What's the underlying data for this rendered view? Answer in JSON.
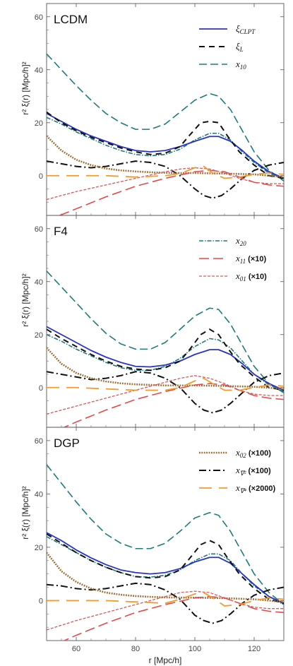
{
  "colors": {
    "xi_clpt": "#2a34c2",
    "xi_L": "#111111",
    "x10": "#1f7a7a",
    "x20": "#1f7a7a",
    "x11": "#e04c4c",
    "x01": "#d45a5a",
    "x02": "#9a6a30",
    "xn2": "#111111",
    "xn4": "#f29a2e"
  },
  "chart_data": [
    {
      "type": "line",
      "title": "LCDM",
      "xlim": [
        50,
        130
      ],
      "ylim": [
        -15,
        65
      ],
      "yticks": [
        0,
        20,
        40,
        60
      ],
      "xticks": [
        60,
        80,
        100,
        120
      ],
      "ylabel": "r² ξ(r) [Mpc/h]²",
      "xlabel": "",
      "legend": {
        "position": "top-right",
        "entries": [
          {
            "key": "xi_clpt",
            "label": "ξ",
            "sub": "CLPT"
          },
          {
            "key": "xi_L",
            "label": "ξ",
            "sub": "L"
          },
          {
            "key": "x10",
            "label": "x",
            "sub": "10"
          }
        ]
      },
      "series": [
        {
          "key": "x10",
          "x": [
            50,
            55,
            60,
            65,
            70,
            75,
            80,
            85,
            90,
            95,
            100,
            105,
            108,
            112,
            116,
            120,
            125,
            130
          ],
          "y": [
            46,
            40,
            34,
            28.5,
            23.5,
            20,
            17.5,
            17.5,
            19.5,
            24,
            28.5,
            31,
            30,
            25,
            17,
            9,
            2,
            -2
          ]
        },
        {
          "key": "x20",
          "x": [
            50,
            55,
            60,
            65,
            70,
            75,
            80,
            85,
            90,
            95,
            100,
            105,
            108,
            112,
            116,
            120,
            125,
            130
          ],
          "y": [
            22,
            19.5,
            16.5,
            14,
            11.5,
            9.5,
            8,
            7.5,
            8,
            10,
            13.5,
            16,
            16,
            13.5,
            9,
            5,
            1,
            -1.5
          ]
        },
        {
          "key": "xi_clpt",
          "x": [
            50,
            55,
            60,
            65,
            70,
            75,
            80,
            85,
            90,
            95,
            100,
            105,
            108,
            112,
            116,
            120,
            125,
            130
          ],
          "y": [
            23.5,
            20.5,
            17.5,
            15,
            13,
            11,
            9.5,
            9,
            9.5,
            11,
            13,
            14.8,
            14.8,
            13,
            9.5,
            5.5,
            1.5,
            -1
          ]
        },
        {
          "key": "xi_L",
          "x": [
            50,
            55,
            60,
            65,
            70,
            75,
            80,
            85,
            90,
            95,
            98,
            102,
            105,
            108,
            111,
            115,
            120,
            125,
            130
          ],
          "y": [
            24,
            20,
            17,
            14.5,
            12.5,
            10.5,
            9,
            8,
            8.5,
            11,
            15,
            20,
            20.5,
            20,
            15,
            9,
            4,
            0,
            -1
          ]
        },
        {
          "key": "xn2",
          "x": [
            50,
            55,
            60,
            65,
            70,
            75,
            80,
            85,
            90,
            95,
            100,
            103,
            106,
            109,
            112,
            116,
            120,
            125,
            130
          ],
          "y": [
            5.5,
            4.5,
            3.5,
            3,
            3.5,
            4.5,
            5.5,
            5,
            3.5,
            0,
            -5,
            -7.5,
            -8.5,
            -7.5,
            -5,
            -1,
            2,
            4,
            5
          ]
        },
        {
          "key": "x02",
          "x": [
            50,
            55,
            60,
            65,
            70,
            75,
            80,
            85,
            90,
            95,
            100,
            110,
            120,
            130
          ],
          "y": [
            15,
            9.5,
            6,
            4,
            2.7,
            2,
            1.6,
            1.3,
            1.1,
            1,
            1,
            0.8,
            0.5,
            -0.5
          ]
        },
        {
          "key": "x11",
          "x": [
            50,
            60,
            70,
            80,
            90,
            100,
            105,
            110,
            115,
            120,
            125,
            130
          ],
          "y": [
            -17,
            -12.5,
            -8,
            -4,
            -1,
            1.5,
            2,
            1.5,
            -0.5,
            -2.5,
            -3.5,
            -4
          ]
        },
        {
          "key": "x01",
          "x": [
            50,
            60,
            70,
            80,
            90,
            95,
            100,
            105,
            110,
            115,
            120,
            125,
            130
          ],
          "y": [
            -9,
            -6,
            -3.5,
            -1,
            1.5,
            2.5,
            3,
            2.5,
            1,
            -1,
            -2.5,
            -3,
            -3
          ]
        },
        {
          "key": "xn4",
          "x": [
            50,
            60,
            70,
            80,
            90,
            95,
            100,
            103,
            106,
            110,
            115,
            120,
            125,
            130
          ],
          "y": [
            0,
            0,
            0,
            -0.5,
            0,
            0.8,
            3,
            3.5,
            1,
            -1,
            -0.5,
            0.5,
            1,
            0.5
          ]
        }
      ]
    },
    {
      "type": "line",
      "title": "F4",
      "xlim": [
        50,
        130
      ],
      "ylim": [
        -15,
        65
      ],
      "yticks": [
        0,
        20,
        40,
        60
      ],
      "xticks": [
        60,
        80,
        100,
        120
      ],
      "ylabel": "r² ξ(r) [Mpc/h]²",
      "xlabel": "",
      "legend": {
        "position": "top-right",
        "entries": [
          {
            "key": "x20",
            "label": "x",
            "sub": "20",
            "suffix": ""
          },
          {
            "key": "x11",
            "label": "x",
            "sub": "11",
            "suffix": "(×10)"
          },
          {
            "key": "x01",
            "label": "x",
            "sub": "01",
            "suffix": "(×10)"
          }
        ]
      },
      "series": [
        {
          "key": "x10",
          "x": [
            50,
            55,
            60,
            65,
            70,
            75,
            80,
            85,
            90,
            95,
            100,
            105,
            108,
            112,
            116,
            120,
            125,
            130
          ],
          "y": [
            44,
            38,
            32,
            26,
            20.5,
            16.5,
            14.5,
            14.5,
            17,
            22,
            27,
            30,
            29.5,
            24,
            16,
            8,
            1.5,
            -2
          ]
        },
        {
          "key": "x20",
          "x": [
            50,
            55,
            60,
            65,
            70,
            75,
            80,
            85,
            90,
            95,
            100,
            105,
            108,
            112,
            116,
            120,
            125,
            130
          ],
          "y": [
            20,
            17.5,
            14.5,
            12,
            9.5,
            7.5,
            6.5,
            6.5,
            8,
            11,
            15.5,
            18.5,
            18,
            15,
            10,
            5,
            1,
            -1.5
          ]
        },
        {
          "key": "xi_clpt",
          "x": [
            50,
            55,
            60,
            65,
            70,
            75,
            80,
            85,
            90,
            95,
            100,
            105,
            108,
            112,
            116,
            120,
            125,
            130
          ],
          "y": [
            23,
            20,
            17,
            14,
            11.5,
            9.5,
            8,
            7.8,
            8.5,
            10,
            12.5,
            14.3,
            14.3,
            12.5,
            9,
            5,
            1.5,
            -1
          ]
        },
        {
          "key": "xi_L",
          "x": [
            50,
            55,
            60,
            65,
            70,
            75,
            80,
            85,
            90,
            95,
            98,
            102,
            105,
            108,
            111,
            115,
            120,
            125,
            130
          ],
          "y": [
            22,
            18.5,
            15.5,
            12.5,
            10,
            8,
            7,
            6.5,
            7.5,
            10,
            14,
            20,
            22,
            20,
            15,
            9,
            4,
            0,
            -1
          ]
        },
        {
          "key": "xn2",
          "x": [
            50,
            55,
            60,
            65,
            70,
            75,
            80,
            85,
            90,
            95,
            100,
            103,
            106,
            109,
            112,
            116,
            120,
            125,
            130
          ],
          "y": [
            6,
            5,
            4,
            3,
            3.5,
            4.5,
            6,
            5.5,
            3.5,
            0,
            -6,
            -8.5,
            -9.5,
            -8.5,
            -6,
            -2,
            2,
            4.5,
            5.5
          ]
        },
        {
          "key": "x02",
          "x": [
            50,
            55,
            60,
            65,
            70,
            75,
            80,
            85,
            90,
            95,
            100,
            110,
            120,
            130
          ],
          "y": [
            15,
            9,
            5.5,
            3.5,
            2.3,
            1.6,
            1.2,
            1,
            0.8,
            0.8,
            0.8,
            0.6,
            0.3,
            -0.5
          ]
        },
        {
          "key": "x11",
          "x": [
            50,
            60,
            70,
            80,
            90,
            100,
            105,
            110,
            115,
            120,
            125,
            130
          ],
          "y": [
            -18,
            -13,
            -8.5,
            -4.5,
            -1.5,
            1,
            1.5,
            1,
            -1,
            -3,
            -4,
            -4.5
          ]
        },
        {
          "key": "x01",
          "x": [
            50,
            60,
            70,
            80,
            90,
            95,
            100,
            105,
            110,
            115,
            120,
            125,
            130
          ],
          "y": [
            -10,
            -7,
            -4,
            -1,
            2,
            3.5,
            4.5,
            3.5,
            1.5,
            -1,
            -2.5,
            -3,
            -3
          ]
        },
        {
          "key": "xn4",
          "x": [
            50,
            60,
            70,
            80,
            90,
            95,
            100,
            103,
            106,
            110,
            115,
            120,
            125,
            130
          ],
          "y": [
            0,
            0,
            -0.5,
            -1,
            -1,
            0,
            2.5,
            3.5,
            1.5,
            -1,
            -1,
            0,
            1,
            0.5
          ]
        }
      ]
    },
    {
      "type": "line",
      "title": "DGP",
      "xlim": [
        50,
        130
      ],
      "ylim": [
        -15,
        65
      ],
      "yticks": [
        0,
        20,
        40,
        60
      ],
      "xticks": [
        60,
        80,
        100,
        120
      ],
      "ylabel": "r² ξ(r) [Mpc/h]²",
      "xlabel": "r [Mpc/h]",
      "legend": {
        "position": "top-right",
        "entries": [
          {
            "key": "x02",
            "label": "x",
            "sub": "02",
            "suffix": "(×100)"
          },
          {
            "key": "xn2",
            "label": "x",
            "sub": "∇²",
            "suffix": "(×100)"
          },
          {
            "key": "xn4",
            "label": "x",
            "sub": "∇⁴",
            "suffix": "(×2000)"
          }
        ]
      },
      "series": [
        {
          "key": "x10",
          "x": [
            50,
            55,
            60,
            65,
            70,
            75,
            80,
            85,
            90,
            95,
            100,
            105,
            108,
            112,
            116,
            120,
            125,
            130
          ],
          "y": [
            51,
            44,
            37,
            30.5,
            25,
            21.5,
            19.5,
            19.5,
            21.5,
            26,
            31,
            33,
            32,
            26,
            18,
            10,
            3,
            -1.5
          ]
        },
        {
          "key": "x20",
          "x": [
            50,
            55,
            60,
            65,
            70,
            75,
            80,
            85,
            90,
            95,
            100,
            105,
            108,
            112,
            116,
            120,
            125,
            130
          ],
          "y": [
            24,
            21,
            18,
            15,
            12.5,
            10.5,
            9,
            8.8,
            9.5,
            11.5,
            15,
            17.5,
            17.5,
            15,
            10,
            5.5,
            1.5,
            -1.5
          ]
        },
        {
          "key": "xi_clpt",
          "x": [
            50,
            55,
            60,
            65,
            70,
            75,
            80,
            85,
            90,
            95,
            100,
            105,
            108,
            112,
            116,
            120,
            125,
            130
          ],
          "y": [
            25.5,
            22.5,
            19,
            16,
            13.5,
            11.5,
            10.5,
            10,
            10.5,
            12,
            14.5,
            16.2,
            16.2,
            14,
            10,
            6,
            1.5,
            -1
          ]
        },
        {
          "key": "xi_L",
          "x": [
            50,
            55,
            60,
            65,
            70,
            75,
            80,
            85,
            90,
            95,
            98,
            102,
            105,
            108,
            111,
            115,
            120,
            125,
            130
          ],
          "y": [
            25,
            21.5,
            18,
            15,
            12.5,
            10.5,
            9,
            8.5,
            9,
            11.5,
            15.5,
            21,
            22.5,
            21,
            16,
            10,
            4.5,
            0.5,
            -1
          ]
        },
        {
          "key": "xn2",
          "x": [
            50,
            55,
            60,
            65,
            70,
            75,
            80,
            85,
            90,
            95,
            100,
            103,
            106,
            109,
            112,
            116,
            120,
            125,
            130
          ],
          "y": [
            6,
            5.5,
            4.5,
            4,
            4.5,
            5.5,
            6.5,
            6,
            4,
            0.5,
            -5.5,
            -7.5,
            -8.5,
            -7.5,
            -5,
            -1,
            2,
            4,
            5
          ]
        },
        {
          "key": "x02",
          "x": [
            50,
            55,
            60,
            65,
            70,
            75,
            80,
            85,
            90,
            95,
            100,
            110,
            120,
            130
          ],
          "y": [
            18,
            11,
            7,
            4.5,
            3,
            2.2,
            1.7,
            1.4,
            1.2,
            1.1,
            1.1,
            0.9,
            0.5,
            -0.5
          ]
        },
        {
          "key": "x11",
          "x": [
            50,
            60,
            70,
            80,
            90,
            100,
            105,
            110,
            115,
            120,
            125,
            130
          ],
          "y": [
            -18,
            -13,
            -8.5,
            -4.5,
            -1.5,
            1,
            1.5,
            1,
            -1,
            -3,
            -4,
            -4.5
          ]
        },
        {
          "key": "x01",
          "x": [
            50,
            60,
            70,
            80,
            90,
            95,
            100,
            105,
            110,
            115,
            120,
            125,
            130
          ],
          "y": [
            -11,
            -7.5,
            -4.5,
            -1.5,
            1.5,
            3,
            3.5,
            3,
            1,
            -1,
            -2.5,
            -3,
            -3
          ]
        },
        {
          "key": "xn4",
          "x": [
            50,
            60,
            70,
            80,
            90,
            95,
            100,
            103,
            106,
            110,
            115,
            120,
            125,
            130
          ],
          "y": [
            0,
            0,
            0,
            -0.5,
            -1,
            0.5,
            2.5,
            3,
            1,
            -2,
            -1.5,
            0,
            1,
            0.5
          ]
        }
      ]
    }
  ]
}
